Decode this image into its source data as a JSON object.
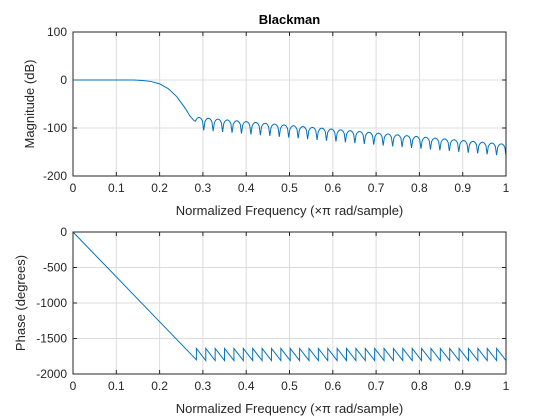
{
  "figure": {
    "background": "#ffffff",
    "axes_color": "#262626",
    "grid_color": "#dcdcdc",
    "line_color": "#0072bd"
  },
  "chart_data": [
    {
      "type": "line",
      "title": "Blackman",
      "xlabel": "Normalized Frequency  (×π rad/sample)",
      "ylabel": "Magnitude (dB)",
      "xlim": [
        0,
        1
      ],
      "ylim": [
        -200,
        100
      ],
      "xticks": [
        0,
        0.1,
        0.2,
        0.3,
        0.4,
        0.5,
        0.6,
        0.7,
        0.8,
        0.9,
        1
      ],
      "xtick_labels": [
        "0",
        "0.1",
        "0.2",
        "0.3",
        "0.4",
        "0.5",
        "0.6",
        "0.7",
        "0.8",
        "0.9",
        "1"
      ],
      "yticks": [
        100,
        0,
        -100,
        -200
      ],
      "ytick_labels": [
        "100",
        "0",
        "-100",
        "-200"
      ],
      "grid": true,
      "series": [
        {
          "x": [
            0,
            0.05,
            0.1,
            0.14,
            0.16,
            0.18,
            0.2,
            0.22,
            0.24,
            0.26,
            0.27,
            0.28
          ],
          "y": [
            0,
            0,
            0,
            0,
            -1,
            -3,
            -8,
            -18,
            -35,
            -60,
            -75,
            -85
          ],
          "lobe_start": 0.28,
          "lobe_count": 33,
          "lobe_peaks_start": -78,
          "lobe_peaks_end": -133,
          "lobe_nulls_start": -105,
          "lobe_nulls_end": -158
        }
      ]
    },
    {
      "type": "line",
      "title": "",
      "xlabel": "Normalized Frequency  (×π rad/sample)",
      "ylabel": "Phase (degrees)",
      "xlim": [
        0,
        1
      ],
      "ylim": [
        -2000,
        0
      ],
      "xticks": [
        0,
        0.1,
        0.2,
        0.3,
        0.4,
        0.5,
        0.6,
        0.7,
        0.8,
        0.9,
        1
      ],
      "xtick_labels": [
        "0",
        "0.1",
        "0.2",
        "0.3",
        "0.4",
        "0.5",
        "0.6",
        "0.7",
        "0.8",
        "0.9",
        "1"
      ],
      "yticks": [
        0,
        -500,
        -1000,
        -1500,
        -2000
      ],
      "ytick_labels": [
        "0",
        "-500",
        "-1000",
        "-1500",
        "-2000"
      ],
      "grid": true,
      "series": [
        {
          "x": [
            0,
            0.285
          ],
          "y": [
            0,
            -1800
          ],
          "sawtooth_start": 0.285,
          "sawtooth_count": 33,
          "sawtooth_high": -1640,
          "sawtooth_low": -1810
        }
      ]
    }
  ]
}
